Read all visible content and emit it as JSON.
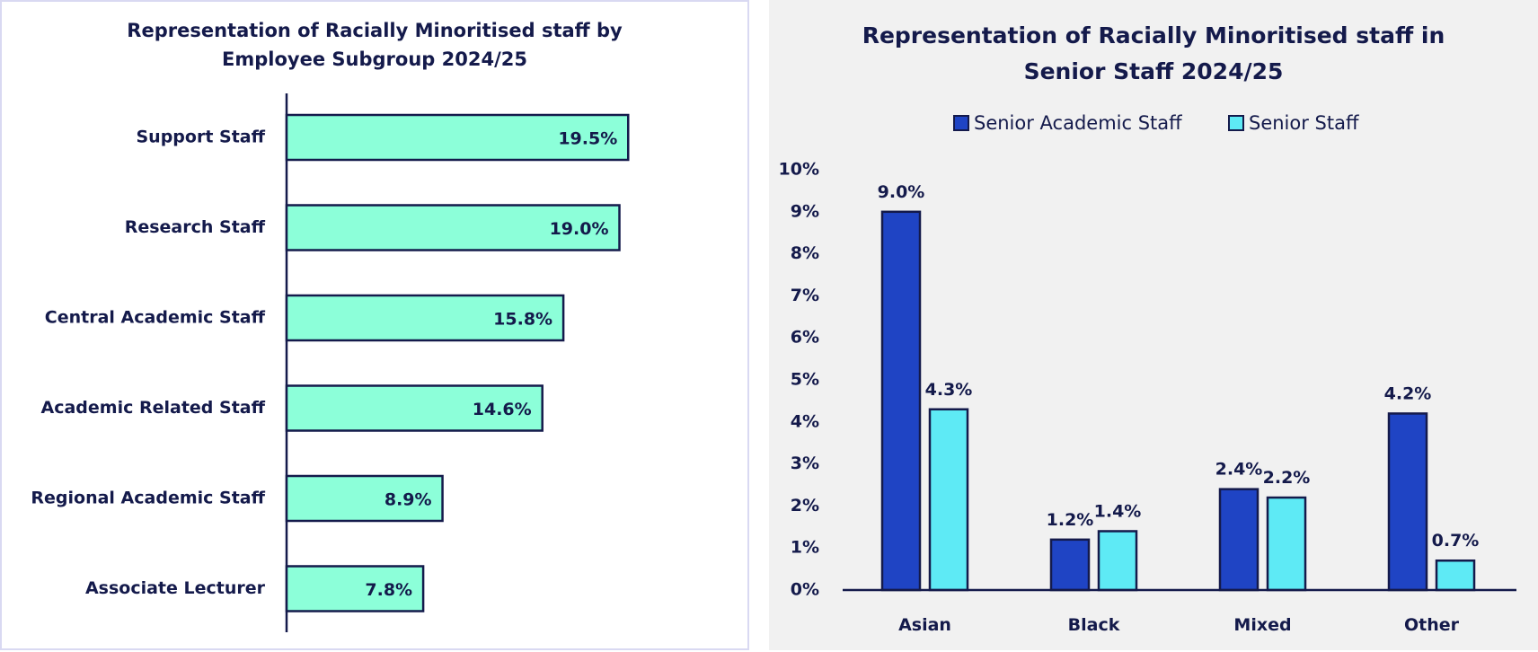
{
  "chart_data": [
    {
      "type": "bar",
      "orientation": "horizontal",
      "title": "Representation of Racially Minoritised staff by Employee Subgroup 2024/25",
      "categories": [
        "Support Staff",
        "Research Staff",
        "Central Academic Staff",
        "Academic Related Staff",
        "Regional Academic Staff",
        "Associate Lecturer"
      ],
      "values": [
        19.5,
        19.0,
        15.8,
        14.6,
        8.9,
        7.8
      ],
      "data_labels": [
        "19.5%",
        "19.0%",
        "15.8%",
        "14.6%",
        "8.9%",
        "7.8%"
      ],
      "xlim": [
        0,
        22
      ],
      "grid": false,
      "colors": {
        "bar": "#8cffd9",
        "edge": "#141a4b"
      }
    },
    {
      "type": "bar",
      "title": "Representation of Racially Minoritised staff in Senior Staff 2024/25",
      "categories": [
        "Asian",
        "Black",
        "Mixed",
        "Other"
      ],
      "series": [
        {
          "name": "Senior Academic Staff",
          "values": [
            9.0,
            1.2,
            2.4,
            4.2
          ],
          "data_labels": [
            "9.0%",
            "1.2%",
            "2.4%",
            "4.2%"
          ],
          "color": "#1f44c4"
        },
        {
          "name": "Senior Staff",
          "values": [
            4.3,
            1.4,
            2.2,
            0.7
          ],
          "data_labels": [
            "4.3%",
            "1.4%",
            "2.2%",
            "0.7%"
          ],
          "color": "#5eeaf5"
        }
      ],
      "yticks": [
        "0%",
        "1%",
        "2%",
        "3%",
        "4%",
        "5%",
        "6%",
        "7%",
        "8%",
        "9%",
        "10%"
      ],
      "ylim": [
        0,
        10
      ],
      "legend": "top-center",
      "grid": false
    }
  ]
}
